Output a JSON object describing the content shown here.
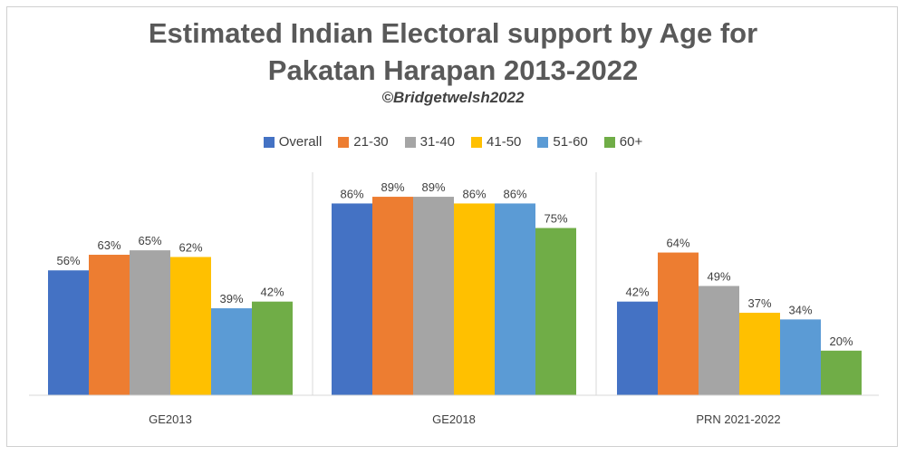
{
  "chart_data": {
    "type": "bar",
    "title_line1": "Estimated Indian Electoral support by Age for",
    "title_line2": "Pakatan Harapan 2013-2022",
    "subtitle": "©Bridgetwelsh2022",
    "categories": [
      "GE2013",
      "GE2018",
      "PRN 2021-2022"
    ],
    "series": [
      {
        "name": "Overall",
        "color": "#4472C4",
        "values": [
          56,
          86,
          42
        ]
      },
      {
        "name": "21-30",
        "color": "#ED7D31",
        "values": [
          63,
          89,
          64
        ]
      },
      {
        "name": "31-40",
        "color": "#A5A5A5",
        "values": [
          65,
          89,
          49
        ]
      },
      {
        "name": "41-50",
        "color": "#FFC000",
        "values": [
          62,
          86,
          37
        ]
      },
      {
        "name": "51-60",
        "color": "#5B9BD5",
        "values": [
          39,
          86,
          34
        ]
      },
      {
        "name": "60+",
        "color": "#70AD47",
        "values": [
          42,
          75,
          20
        ]
      }
    ],
    "value_suffix": "%",
    "ylim": [
      0,
      100
    ],
    "grid": false,
    "legend_position": "top"
  }
}
